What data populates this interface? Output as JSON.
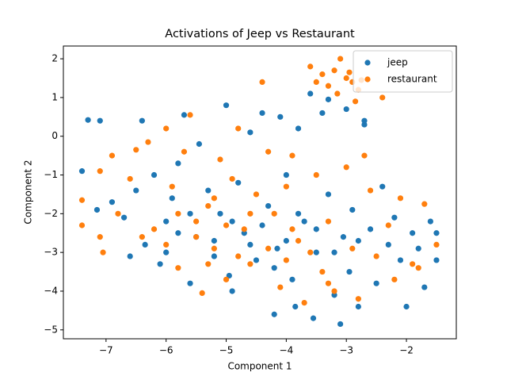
{
  "chart_data": {
    "type": "scatter",
    "title": "Activations of Jeep vs Restaurant",
    "x_label": "Component 1",
    "y_label": "Component 2",
    "xlim": [
      -7.71,
      -1.17
    ],
    "ylim": [
      -5.23,
      2.33
    ],
    "xticks": [
      {
        "value": -7,
        "label": "−7"
      },
      {
        "value": -6,
        "label": "−6"
      },
      {
        "value": -5,
        "label": "−5"
      },
      {
        "value": -4,
        "label": "−4"
      },
      {
        "value": -3,
        "label": "−3"
      },
      {
        "value": -2,
        "label": "−2"
      }
    ],
    "yticks": [
      {
        "value": -5,
        "label": "−5"
      },
      {
        "value": -4,
        "label": "−4"
      },
      {
        "value": -3,
        "label": "−3"
      },
      {
        "value": -2,
        "label": "−2"
      },
      {
        "value": -1,
        "label": "−1"
      },
      0,
      1,
      2
    ],
    "legend": "upper right",
    "grid": false,
    "series": [
      {
        "name": "jeep",
        "color": "#1f77b4",
        "x": [
          -7.4,
          -7.3,
          -7.1,
          -7.15,
          -6.9,
          -6.7,
          -6.5,
          -6.4,
          -6.35,
          -6.2,
          -6.1,
          -6.0,
          -5.9,
          -5.8,
          -5.7,
          -5.6,
          -5.5,
          -5.45,
          -5.3,
          -5.2,
          -5.1,
          -5.0,
          -4.95,
          -4.9,
          -4.8,
          -4.7,
          -4.6,
          -4.5,
          -4.4,
          -4.3,
          -4.2,
          -4.15,
          -4.1,
          -4.0,
          -3.9,
          -3.85,
          -3.8,
          -3.7,
          -3.6,
          -3.55,
          -3.5,
          -3.4,
          -3.3,
          -3.2,
          -3.1,
          -3.05,
          -3.0,
          -2.95,
          -2.9,
          -2.8,
          -2.7,
          -2.6,
          -2.5,
          -2.4,
          -2.3,
          -2.2,
          -2.1,
          -2.0,
          -1.9,
          -1.8,
          -1.7,
          -1.6,
          -1.5,
          -1.5,
          -5.6,
          -5.2,
          -4.9,
          -4.6,
          -4.4,
          -4.0,
          -3.8,
          -3.5,
          -6.0,
          -5.8,
          -4.2,
          -3.2,
          -2.8,
          -6.6,
          -3.3,
          -2.7
        ],
        "values": [
          -0.9,
          0.42,
          0.4,
          -1.9,
          -1.7,
          -2.1,
          -1.4,
          0.4,
          -2.8,
          -1.0,
          -3.3,
          -2.2,
          -1.6,
          -0.7,
          0.55,
          -3.8,
          -2.6,
          -0.2,
          -1.4,
          -3.1,
          -2.0,
          0.8,
          -3.6,
          -4.0,
          -1.2,
          -2.5,
          0.1,
          -3.2,
          0.6,
          -1.8,
          -4.6,
          -2.9,
          0.5,
          -1.0,
          -3.7,
          -4.4,
          0.2,
          -2.2,
          1.1,
          -4.7,
          -3.0,
          0.6,
          -1.5,
          -4.1,
          -4.85,
          -2.6,
          0.7,
          -3.5,
          -1.9,
          -4.4,
          0.3,
          -2.4,
          -3.8,
          -1.3,
          -2.8,
          -2.1,
          -3.2,
          -4.4,
          -2.5,
          -2.9,
          -3.9,
          -2.2,
          -3.2,
          -2.5,
          -2.0,
          -2.7,
          -2.2,
          -2.8,
          -2.3,
          -2.7,
          -2.0,
          -2.4,
          -3.0,
          -2.5,
          -3.4,
          -3.0,
          -2.7,
          -3.1,
          0.95,
          0.4
        ]
      },
      {
        "name": "restaurant",
        "color": "#ff7f0e",
        "x": [
          -7.4,
          -7.4,
          -7.1,
          -7.05,
          -7.1,
          -6.9,
          -6.8,
          -6.6,
          -6.5,
          -6.3,
          -6.2,
          -6.0,
          -5.9,
          -5.8,
          -5.7,
          -5.6,
          -5.5,
          -5.4,
          -5.3,
          -5.2,
          -5.1,
          -5.0,
          -4.9,
          -4.8,
          -4.7,
          -4.6,
          -4.5,
          -4.4,
          -4.3,
          -4.2,
          -4.1,
          -4.0,
          -3.9,
          -3.8,
          -3.7,
          -3.6,
          -3.5,
          -3.4,
          -3.3,
          -3.2,
          -3.15,
          -3.1,
          -3.0,
          -2.95,
          -2.9,
          -2.85,
          -2.8,
          -2.75,
          -3.5,
          -3.4,
          -3.3,
          -3.2,
          -3.0,
          -2.9,
          -2.8,
          -2.7,
          -2.6,
          -2.5,
          -2.4,
          -2.3,
          -2.2,
          -2.1,
          -1.9,
          -1.8,
          -1.7,
          -1.5,
          -6.0,
          -5.5,
          -5.0,
          -4.6,
          -4.3,
          -3.9,
          -3.6,
          -5.8,
          -5.2,
          -4.8,
          -3.3,
          -6.4,
          -5.3,
          -4.0
        ],
        "values": [
          -2.3,
          -1.65,
          -2.6,
          -3.0,
          -0.9,
          -0.5,
          -2.0,
          -1.1,
          -0.35,
          -0.15,
          -2.4,
          0.2,
          -1.3,
          -3.4,
          -0.4,
          0.55,
          -2.2,
          -4.05,
          -1.8,
          -2.9,
          -0.6,
          -3.7,
          -1.1,
          0.2,
          -2.4,
          -3.3,
          -1.5,
          1.4,
          -0.4,
          -2.0,
          -3.9,
          -1.3,
          -0.5,
          -2.7,
          -4.3,
          1.8,
          1.4,
          1.6,
          1.3,
          1.7,
          1.1,
          2.0,
          1.5,
          1.65,
          1.4,
          0.9,
          1.2,
          1.45,
          -1.0,
          -3.5,
          -2.2,
          -4.0,
          -0.8,
          -2.9,
          -4.2,
          -0.5,
          -1.4,
          -3.1,
          1.0,
          -2.3,
          -3.7,
          -1.6,
          -3.3,
          -3.4,
          -1.75,
          -2.8,
          -2.8,
          -2.6,
          -2.3,
          -2.0,
          -2.9,
          -2.4,
          -3.0,
          -2.0,
          -1.6,
          -3.1,
          -3.8,
          -2.6,
          -3.3,
          -3.2
        ]
      }
    ]
  }
}
